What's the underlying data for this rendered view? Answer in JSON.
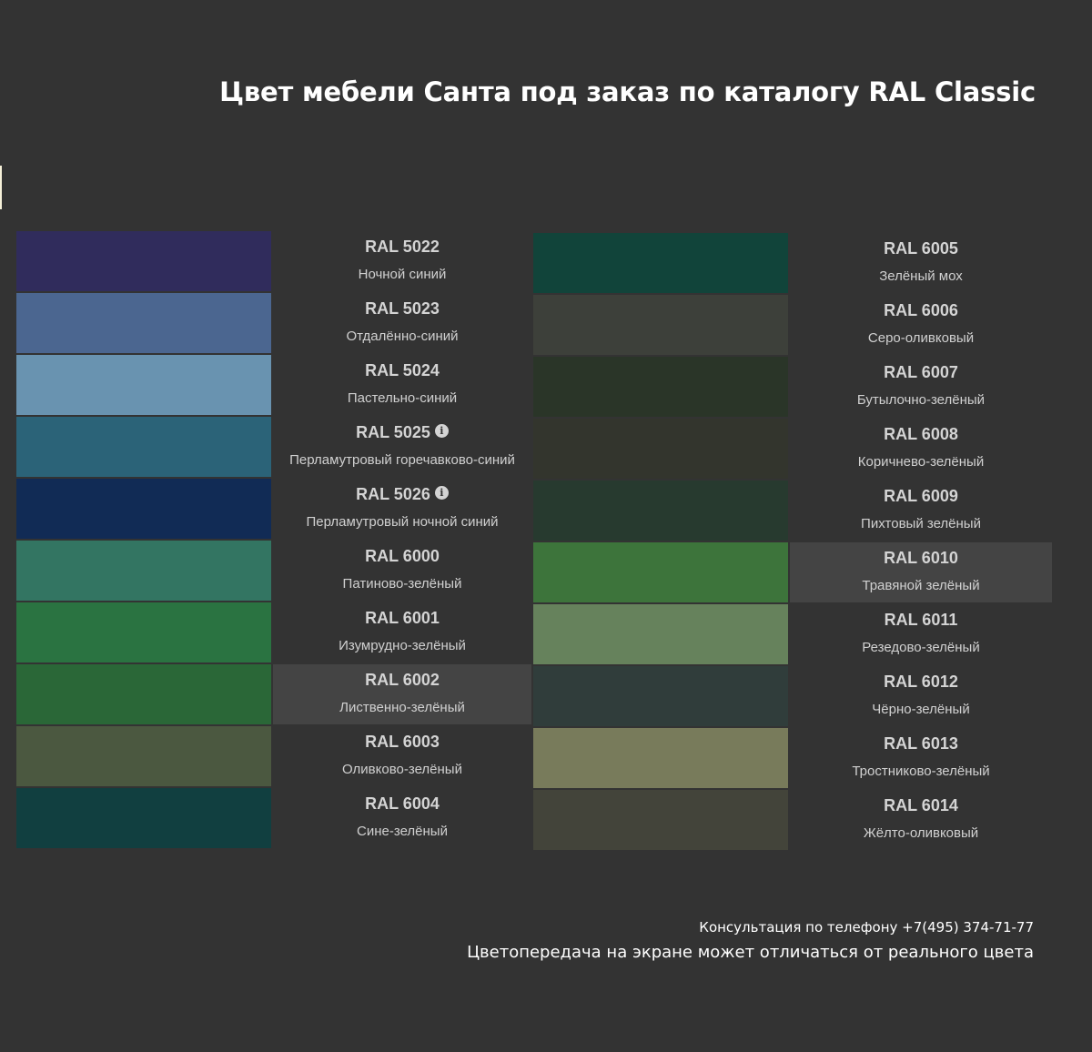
{
  "title": "Цвет мебели Санта под заказ по каталогу RAL Classic",
  "columns": [
    {
      "items": [
        {
          "code": "RAL 5022",
          "name": "Ночной синий",
          "color": "#302c5c",
          "info": false,
          "highlighted": false
        },
        {
          "code": "RAL 5023",
          "name": "Отдалённо-синий",
          "color": "#4b6690",
          "info": false,
          "highlighted": false
        },
        {
          "code": "RAL 5024",
          "name": "Пастельно-синий",
          "color": "#6993b0",
          "info": false,
          "highlighted": false
        },
        {
          "code": "RAL 5025",
          "name": "Перламутровый горечавково-синий",
          "color": "#2b6378",
          "info": true,
          "highlighted": false
        },
        {
          "code": "RAL 5026",
          "name": "Перламутровый ночной синий",
          "color": "#112b55",
          "info": true,
          "highlighted": false
        },
        {
          "code": "RAL 6000",
          "name": "Патиново-зелёный",
          "color": "#337562",
          "info": false,
          "highlighted": false
        },
        {
          "code": "RAL 6001",
          "name": "Изумрудно-зелёный",
          "color": "#2a7341",
          "info": false,
          "highlighted": false
        },
        {
          "code": "RAL 6002",
          "name": "Лиственно-зелёный",
          "color": "#2a6737",
          "info": false,
          "highlighted": true
        },
        {
          "code": "RAL 6003",
          "name": "Оливково-зелёный",
          "color": "#4b5840",
          "info": false,
          "highlighted": false
        },
        {
          "code": "RAL 6004",
          "name": "Сине-зелёный",
          "color": "#113f40",
          "info": false,
          "highlighted": false
        }
      ]
    },
    {
      "items": [
        {
          "code": "RAL 6005",
          "name": "Зелёный мох",
          "color": "#11443a",
          "info": false,
          "highlighted": false
        },
        {
          "code": "RAL 6006",
          "name": "Серо-оливковый",
          "color": "#3d403a",
          "info": false,
          "highlighted": false
        },
        {
          "code": "RAL 6007",
          "name": "Бутылочно-зелёный",
          "color": "#2a3528",
          "info": false,
          "highlighted": false
        },
        {
          "code": "RAL 6008",
          "name": "Коричнево-зелёный",
          "color": "#33352d",
          "info": false,
          "highlighted": false
        },
        {
          "code": "RAL 6009",
          "name": "Пихтовый зелёный",
          "color": "#273a2f",
          "info": false,
          "highlighted": false
        },
        {
          "code": "RAL 6010",
          "name": "Травяной зелёный",
          "color": "#3d743b",
          "info": false,
          "highlighted": true
        },
        {
          "code": "RAL 6011",
          "name": "Резедово-зелёный",
          "color": "#66825c",
          "info": false,
          "highlighted": false
        },
        {
          "code": "RAL 6012",
          "name": "Чёрно-зелёный",
          "color": "#303d3b",
          "info": false,
          "highlighted": false
        },
        {
          "code": "RAL 6013",
          "name": "Тростниково-зелёный",
          "color": "#787b5b",
          "info": false,
          "highlighted": false
        },
        {
          "code": "RAL 6014",
          "name": "Жёлто-оливковый",
          "color": "#43443a",
          "info": false,
          "highlighted": false
        }
      ]
    }
  ],
  "info_icon": "info-icon",
  "footer": {
    "phone": "Консультация по телефону +7(495) 374-71-77",
    "disclaimer": "Цветопередача на экране может отличаться от реального цвета"
  }
}
